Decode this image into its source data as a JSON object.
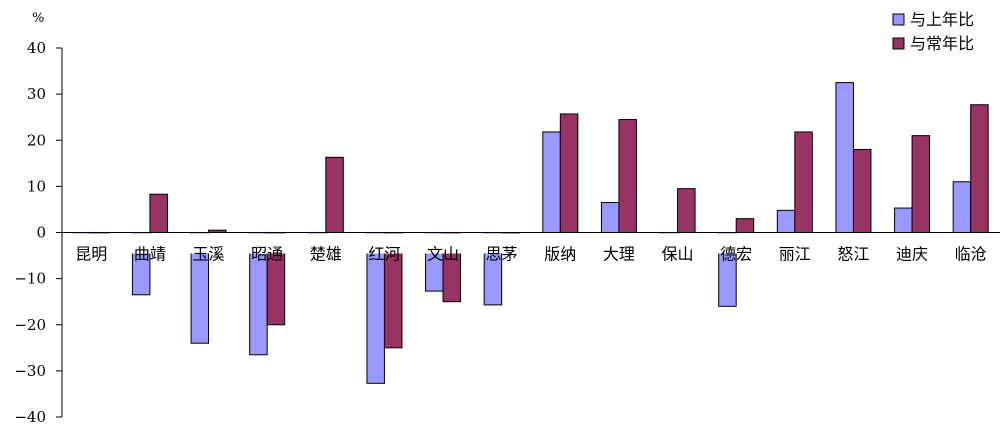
{
  "chart_data": {
    "type": "bar",
    "unit": "%",
    "categories": [
      "昆明",
      "曲靖",
      "玉溪",
      "昭通",
      "楚雄",
      "红河",
      "文山",
      "思茅",
      "版纳",
      "大理",
      "保山",
      "德宏",
      "丽江",
      "怒江",
      "迪庆",
      "临沧"
    ],
    "series": [
      {
        "name": "与上年比",
        "color": "#9999ff",
        "values": [
          -3,
          -13.5,
          -24,
          -26.5,
          -2,
          -32.7,
          -12.7,
          -15.7,
          21.8,
          6.5,
          -3,
          -16,
          4.8,
          32.5,
          5.3,
          11
        ]
      },
      {
        "name": "与常年比",
        "color": "#993366",
        "values": [
          -3.3,
          8.3,
          0.5,
          -20,
          16.3,
          -25,
          -15,
          -0.3,
          25.7,
          24.5,
          9.5,
          3,
          21.8,
          18,
          21,
          27.7
        ]
      }
    ],
    "ylim": [
      -40,
      40
    ],
    "yticks": [
      -40,
      -30,
      -20,
      -10,
      0,
      10,
      20,
      30,
      40
    ],
    "ytick_labels": [
      "−40",
      "−30",
      "−20",
      "−10",
      "0",
      "10",
      "20",
      "30",
      "40"
    ],
    "legend_position": "top-right",
    "grid": false
  }
}
